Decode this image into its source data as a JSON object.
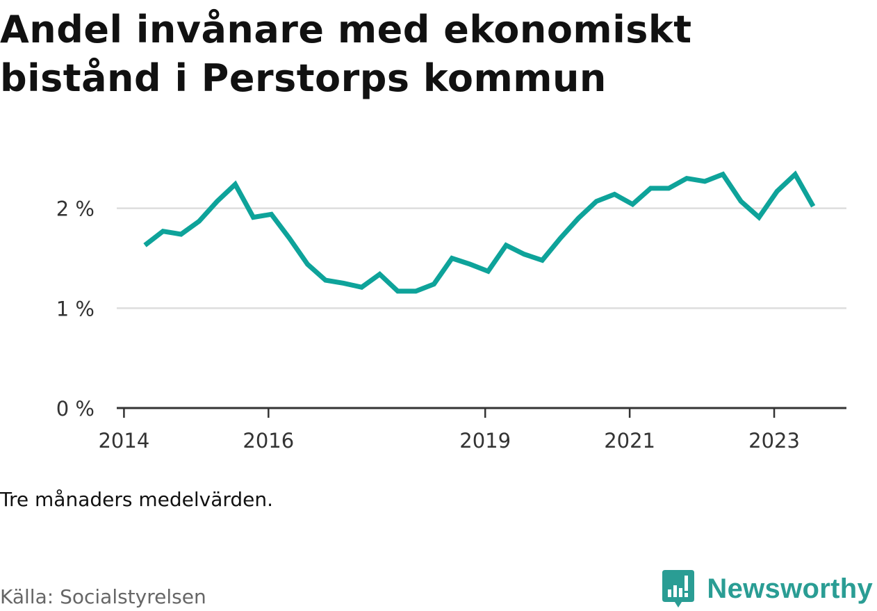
{
  "title": "Andel invånare med ekonomiskt bistånd i Perstorps kommun",
  "note": "Tre månaders medelvärden.",
  "source": "Källa: Socialstyrelsen",
  "logo": {
    "name": "Newsworthy",
    "icon": "newsworthy-speech-bubble-icon",
    "color": "#2a9d94"
  },
  "chart_data": {
    "type": "line",
    "title": "Andel invånare med ekonomiskt bistånd i Perstorps kommun",
    "xlabel": "",
    "ylabel": "",
    "y_unit": "%",
    "ylim": [
      0,
      2.45
    ],
    "yticks": [
      {
        "value": 0,
        "label": "0 %"
      },
      {
        "value": 1,
        "label": "1 %"
      },
      {
        "value": 2,
        "label": "2 %"
      }
    ],
    "xlim": [
      2013.9,
      2024.0
    ],
    "xticks": [
      {
        "value": 2014,
        "label": "2014"
      },
      {
        "value": 2016,
        "label": "2016"
      },
      {
        "value": 2019,
        "label": "2019"
      },
      {
        "value": 2021,
        "label": "2021"
      },
      {
        "value": 2023,
        "label": "2023"
      }
    ],
    "grid": true,
    "line_color": "#0ea39a",
    "grid_color": "#dddddd",
    "axis_color": "#333333",
    "series": [
      {
        "x": [
          2014.29,
          2014.54,
          2014.79,
          2015.04,
          2015.29,
          2015.54,
          2015.79,
          2016.04,
          2016.29,
          2016.54,
          2016.79,
          2017.04,
          2017.29,
          2017.54,
          2017.79,
          2018.04,
          2018.29,
          2018.54,
          2018.79,
          2019.04,
          2019.29,
          2019.54,
          2019.79,
          2020.04,
          2020.29,
          2020.54,
          2020.79,
          2021.04,
          2021.29,
          2021.54,
          2021.79,
          2022.04,
          2022.29,
          2022.54,
          2022.79,
          2023.04,
          2023.29,
          2023.54
        ],
        "values": [
          1.63,
          1.77,
          1.74,
          1.87,
          2.07,
          2.24,
          1.91,
          1.94,
          1.7,
          1.44,
          1.28,
          1.25,
          1.21,
          1.34,
          1.17,
          1.17,
          1.24,
          1.5,
          1.44,
          1.37,
          1.63,
          1.54,
          1.48,
          1.7,
          1.9,
          2.07,
          2.14,
          2.04,
          2.2,
          2.2,
          2.3,
          2.27,
          2.34,
          2.07,
          1.91,
          2.17,
          2.34,
          2.02
        ]
      }
    ]
  }
}
